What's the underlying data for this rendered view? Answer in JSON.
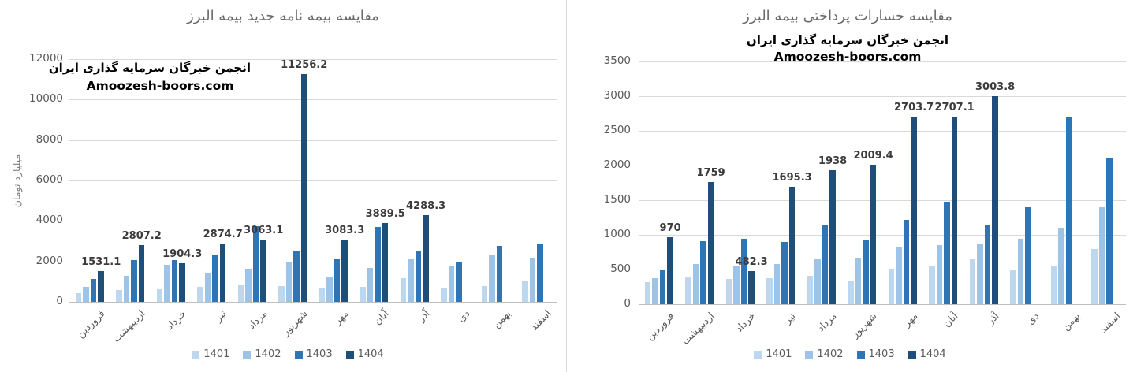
{
  "page": {
    "background": "#ffffff",
    "divider_color": "#d9d9d9"
  },
  "watermark": {
    "line1": "انجمن خبرگان سرمایه گذاری ایران",
    "line2": "Amoozesh-boors.com"
  },
  "legend": {
    "position": "bottom-center",
    "entries": [
      "1401",
      "1402",
      "1403",
      "1404"
    ]
  },
  "series_colors": {
    "1401": "#BDD7EE",
    "1402": "#9DC3E6",
    "1403": "#2E75B6",
    "1404": "#1F4E79"
  },
  "chart_data": [
    {
      "type": "bar",
      "title": "مقایسه بیمه نامه جدید بیمه البرز",
      "ylabel": "میلیارد تومان",
      "xlabel": "",
      "ylim": [
        0,
        12000
      ],
      "y_tick_step": 2000,
      "grid": true,
      "legend_position": "bottom",
      "watermark_position": "plot-top-left",
      "categories": [
        "فروردین",
        "اردیبهشت",
        "خرداد",
        "تیر",
        "مرداد",
        "شهریور",
        "مهر",
        "آبان",
        "آذر",
        "دی",
        "بهمن",
        "اسفند"
      ],
      "series": [
        {
          "name": "1401",
          "color": "#BDD7EE",
          "values": [
            420,
            600,
            640,
            760,
            870,
            785,
            665,
            730,
            1180,
            700,
            790,
            1030
          ]
        },
        {
          "name": "1402",
          "color": "#9DC3E6",
          "values": [
            730,
            1290,
            1820,
            1400,
            1640,
            2000,
            1225,
            1660,
            2150,
            1790,
            2290,
            2180
          ]
        },
        {
          "name": "1403",
          "color": "#2E75B6",
          "values": [
            1150,
            2050,
            2070,
            2300,
            3750,
            2530,
            2130,
            3700,
            2500,
            2000,
            2760,
            2860
          ]
        },
        {
          "name": "1404",
          "color": "#1F4E79",
          "data_labels": true,
          "values": [
            1531.1,
            2807.2,
            1904.3,
            2874.7,
            3063.1,
            11256.2,
            3083.3,
            3889.5,
            4288.3,
            null,
            null,
            null
          ]
        }
      ]
    },
    {
      "type": "bar",
      "title": "مقایسه خسارات پرداختی بیمه البرز",
      "ylabel": "",
      "xlabel": "",
      "ylim": [
        0,
        3500
      ],
      "y_tick_step": 500,
      "grid": true,
      "legend_position": "bottom",
      "watermark_position": "below-title-center",
      "categories": [
        "فروردین",
        "اردیبهشت",
        "خرداد",
        "تیر",
        "مرداد",
        "شهریور",
        "مهر",
        "آبان",
        "آذر",
        "دی",
        "بهمن",
        "اسفند"
      ],
      "series": [
        {
          "name": "1401",
          "color": "#BDD7EE",
          "values": [
            315,
            385,
            365,
            375,
            405,
            340,
            510,
            545,
            645,
            490,
            550,
            795
          ]
        },
        {
          "name": "1402",
          "color": "#9DC3E6",
          "values": [
            375,
            580,
            555,
            585,
            665,
            670,
            830,
            855,
            865,
            945,
            1100,
            1400
          ]
        },
        {
          "name": "1403",
          "color": "#2E75B6",
          "values": [
            505,
            910,
            945,
            895,
            1150,
            935,
            1220,
            1475,
            1150,
            1400,
            2705,
            2100
          ]
        },
        {
          "name": "1404",
          "color": "#1F4E79",
          "data_labels": true,
          "values": [
            970,
            1759,
            482.3,
            1695.3,
            1938,
            2009.4,
            2703.7,
            2707.1,
            3003.8,
            null,
            null,
            null
          ]
        }
      ]
    }
  ]
}
